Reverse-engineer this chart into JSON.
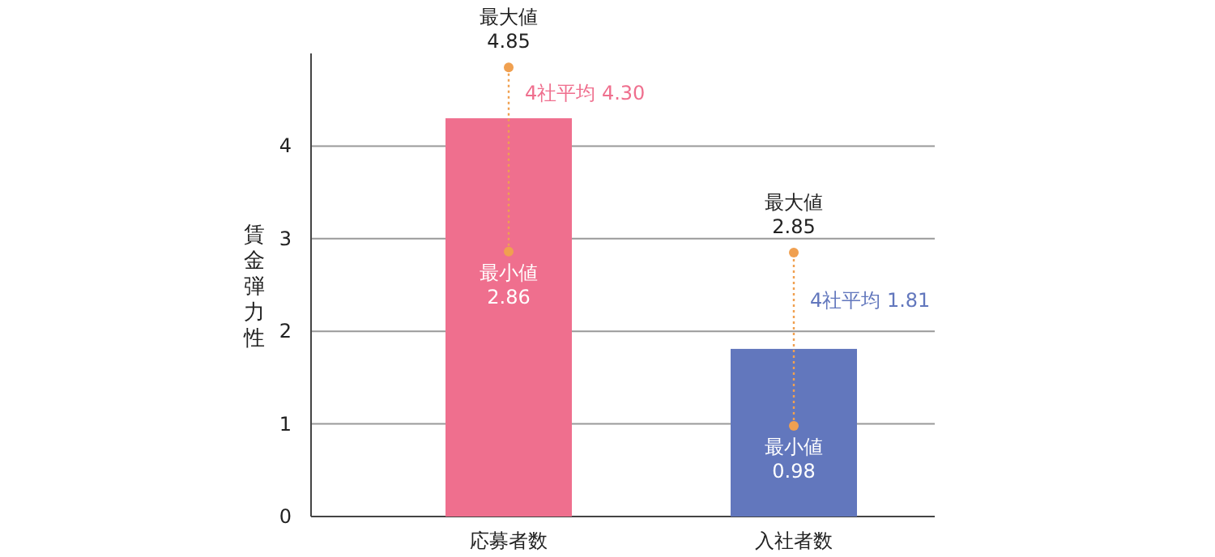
{
  "chart_data": {
    "type": "bar",
    "ylabel": "賃金弾力性",
    "categories": [
      "応募者数",
      "入社者数"
    ],
    "values": [
      4.3,
      1.81
    ],
    "colors": [
      "#ef6f8e",
      "#6277bd"
    ],
    "errors": [
      [
        2.86,
        4.85
      ],
      [
        0.98,
        2.85
      ]
    ],
    "value_labels": [
      "4社平均 4.30",
      "4社平均 1.81"
    ],
    "annotations": [
      {
        "text": "最大値 4.85",
        "x": "応募者数",
        "y": 4.85
      },
      {
        "text": "最小値 2.86",
        "x": "応募者数",
        "y": 2.86
      },
      {
        "text": "最大値 2.85",
        "x": "入社者数",
        "y": 2.85
      },
      {
        "text": "最小値 0.98",
        "x": "入社者数",
        "y": 0.98
      }
    ],
    "ylim": [
      0,
      5
    ],
    "yticks": [
      0,
      1,
      2,
      3,
      4
    ],
    "grid": "y"
  }
}
